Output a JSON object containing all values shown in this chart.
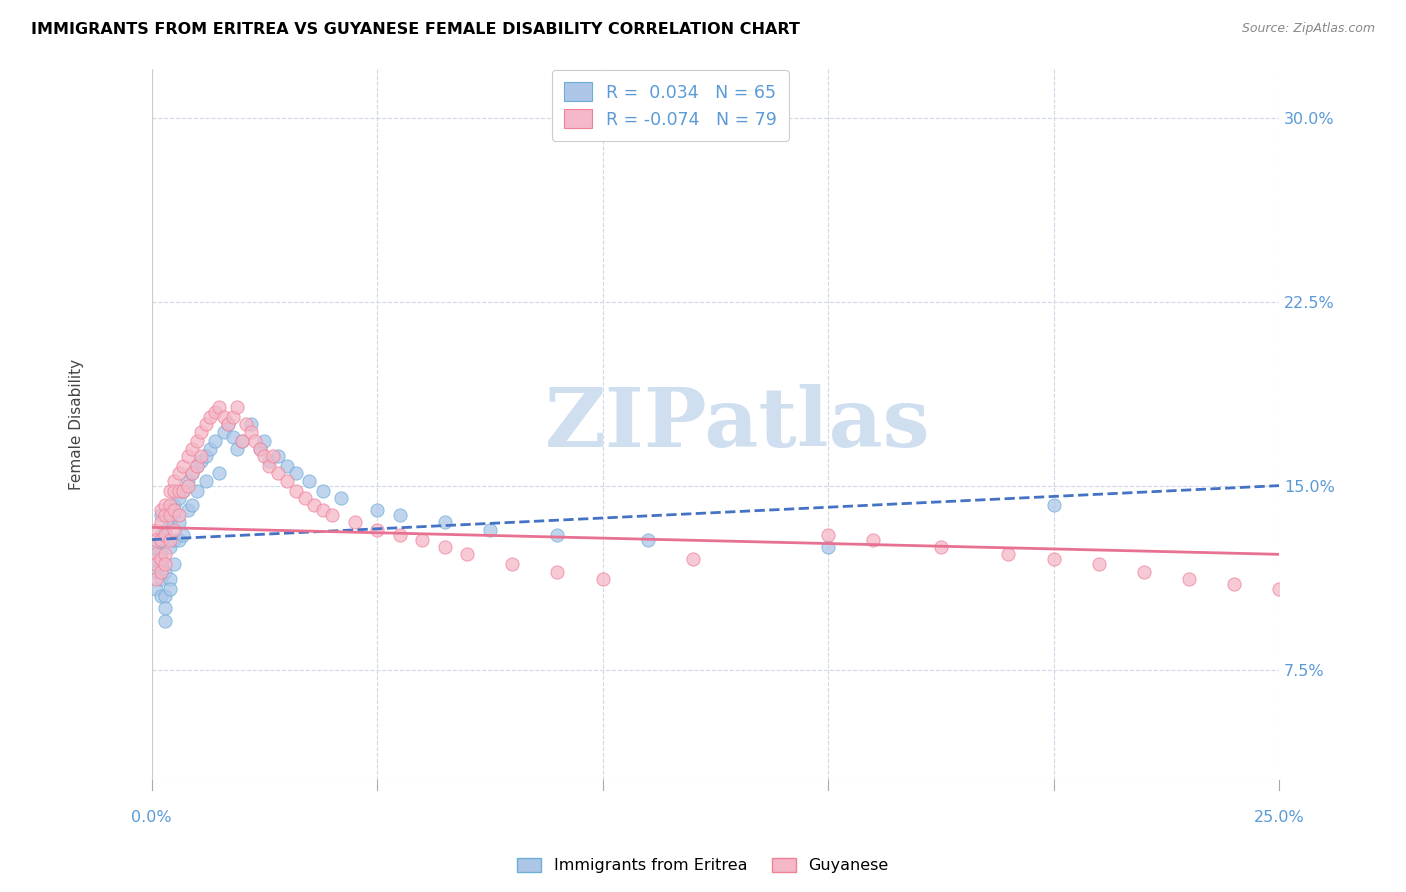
{
  "title": "IMMIGRANTS FROM ERITREA VS GUYANESE FEMALE DISABILITY CORRELATION CHART",
  "source": "Source: ZipAtlas.com",
  "ylabel": "Female Disability",
  "y_ticks": [
    0.075,
    0.15,
    0.225,
    0.3
  ],
  "y_tick_labels": [
    "7.5%",
    "15.0%",
    "22.5%",
    "30.0%"
  ],
  "x_lim": [
    0.0,
    0.25
  ],
  "y_lim": [
    0.03,
    0.32
  ],
  "color_blue_fill": "#adc6e8",
  "color_blue_edge": "#6baed6",
  "color_pink_fill": "#f4b8c8",
  "color_pink_edge": "#f08098",
  "color_axis_text": "#5b9bd5",
  "color_grid": "#d0d8e8",
  "blue_line_color": "#4472c4",
  "pink_line_color": "#e87090",
  "watermark_color": "#d0dff0",
  "blue_x": [
    0.001,
    0.001,
    0.001,
    0.001,
    0.002,
    0.002,
    0.002,
    0.002,
    0.002,
    0.002,
    0.002,
    0.003,
    0.003,
    0.003,
    0.003,
    0.003,
    0.004,
    0.004,
    0.004,
    0.004,
    0.004,
    0.005,
    0.005,
    0.005,
    0.005,
    0.006,
    0.006,
    0.006,
    0.007,
    0.007,
    0.008,
    0.008,
    0.009,
    0.009,
    0.01,
    0.01,
    0.011,
    0.012,
    0.012,
    0.013,
    0.014,
    0.015,
    0.016,
    0.017,
    0.018,
    0.019,
    0.02,
    0.022,
    0.024,
    0.025,
    0.026,
    0.028,
    0.03,
    0.032,
    0.035,
    0.038,
    0.042,
    0.05,
    0.055,
    0.065,
    0.075,
    0.09,
    0.11,
    0.15,
    0.2
  ],
  "blue_y": [
    0.12,
    0.115,
    0.125,
    0.108,
    0.13,
    0.118,
    0.112,
    0.122,
    0.105,
    0.128,
    0.138,
    0.132,
    0.115,
    0.105,
    0.1,
    0.095,
    0.14,
    0.135,
    0.125,
    0.112,
    0.108,
    0.142,
    0.138,
    0.128,
    0.118,
    0.145,
    0.135,
    0.128,
    0.148,
    0.13,
    0.152,
    0.14,
    0.155,
    0.142,
    0.158,
    0.148,
    0.16,
    0.162,
    0.152,
    0.165,
    0.168,
    0.155,
    0.172,
    0.175,
    0.17,
    0.165,
    0.168,
    0.175,
    0.165,
    0.168,
    0.16,
    0.162,
    0.158,
    0.155,
    0.152,
    0.148,
    0.145,
    0.14,
    0.138,
    0.135,
    0.132,
    0.13,
    0.128,
    0.125,
    0.142
  ],
  "pink_x": [
    0.001,
    0.001,
    0.001,
    0.001,
    0.001,
    0.002,
    0.002,
    0.002,
    0.002,
    0.002,
    0.003,
    0.003,
    0.003,
    0.003,
    0.003,
    0.004,
    0.004,
    0.004,
    0.004,
    0.005,
    0.005,
    0.005,
    0.005,
    0.006,
    0.006,
    0.006,
    0.007,
    0.007,
    0.008,
    0.008,
    0.009,
    0.009,
    0.01,
    0.01,
    0.011,
    0.011,
    0.012,
    0.013,
    0.014,
    0.015,
    0.016,
    0.017,
    0.018,
    0.019,
    0.02,
    0.021,
    0.022,
    0.023,
    0.024,
    0.025,
    0.026,
    0.027,
    0.028,
    0.03,
    0.032,
    0.034,
    0.036,
    0.038,
    0.04,
    0.045,
    0.05,
    0.055,
    0.06,
    0.065,
    0.07,
    0.08,
    0.09,
    0.1,
    0.12,
    0.15,
    0.16,
    0.175,
    0.19,
    0.2,
    0.21,
    0.22,
    0.23,
    0.24,
    0.25
  ],
  "pink_y": [
    0.132,
    0.128,
    0.122,
    0.118,
    0.112,
    0.14,
    0.135,
    0.128,
    0.12,
    0.115,
    0.142,
    0.138,
    0.13,
    0.122,
    0.118,
    0.148,
    0.142,
    0.138,
    0.128,
    0.152,
    0.148,
    0.14,
    0.132,
    0.155,
    0.148,
    0.138,
    0.158,
    0.148,
    0.162,
    0.15,
    0.165,
    0.155,
    0.168,
    0.158,
    0.172,
    0.162,
    0.175,
    0.178,
    0.18,
    0.182,
    0.178,
    0.175,
    0.178,
    0.182,
    0.168,
    0.175,
    0.172,
    0.168,
    0.165,
    0.162,
    0.158,
    0.162,
    0.155,
    0.152,
    0.148,
    0.145,
    0.142,
    0.14,
    0.138,
    0.135,
    0.132,
    0.13,
    0.128,
    0.125,
    0.122,
    0.118,
    0.115,
    0.112,
    0.12,
    0.13,
    0.128,
    0.125,
    0.122,
    0.12,
    0.118,
    0.115,
    0.112,
    0.11,
    0.108
  ],
  "blue_line_x0": 0.0,
  "blue_line_x1": 0.25,
  "blue_line_y0": 0.128,
  "blue_line_y1": 0.15,
  "pink_line_x0": 0.0,
  "pink_line_x1": 0.25,
  "pink_line_y0": 0.133,
  "pink_line_y1": 0.122
}
